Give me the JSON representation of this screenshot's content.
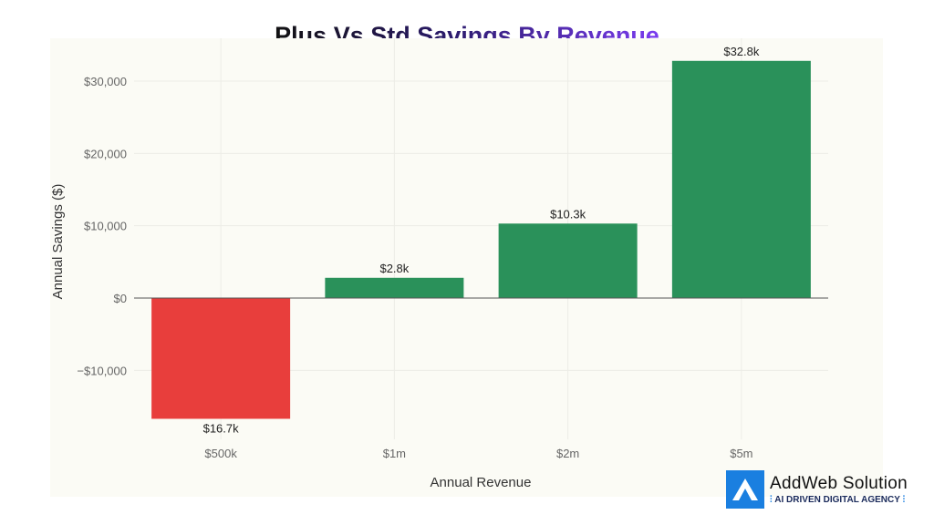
{
  "chart_data": {
    "type": "bar",
    "title": "Plus Vs Std Savings By Revenue",
    "xlabel": "Annual Revenue",
    "ylabel": "Annual Savings ($)",
    "categories": [
      "$500k",
      "$1m",
      "$2m",
      "$5m"
    ],
    "values": [
      -16700,
      2800,
      10300,
      32800
    ],
    "data_labels": [
      "$16.7k",
      "$2.8k",
      "$10.3k",
      "$32.8k"
    ],
    "yticks": [
      -10000,
      0,
      10000,
      20000,
      30000
    ],
    "ytick_labels": [
      "−$10,000",
      "$0",
      "$10,000",
      "$20,000",
      "$30,000"
    ],
    "ylim": [
      -19500,
      36000
    ],
    "grid": true,
    "colors": {
      "negative": "#e83e3c",
      "positive": "#2a915a",
      "background": "#fbfbf5"
    }
  },
  "logo": {
    "name": "AddWeb Solution",
    "tagline": "AI DRIVEN DIGITAL AGENCY"
  }
}
